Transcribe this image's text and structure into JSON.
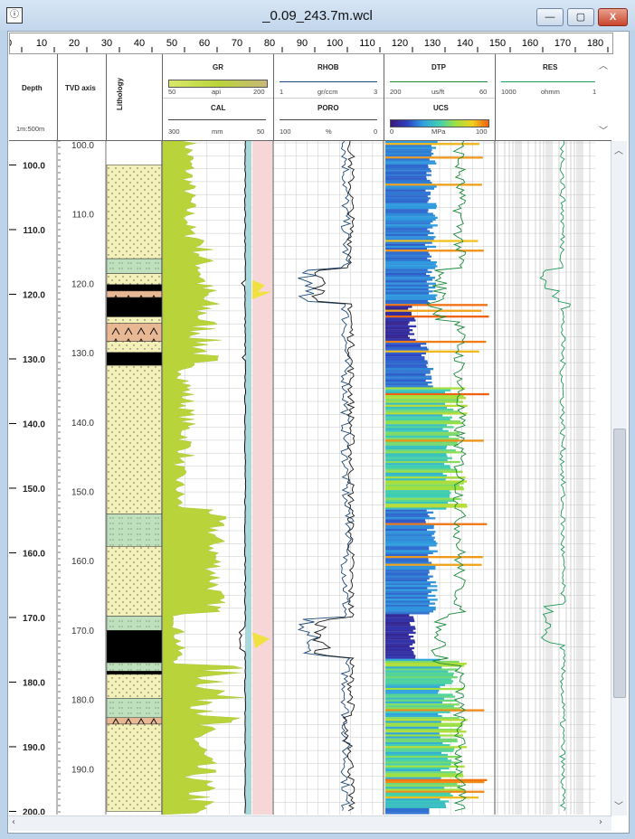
{
  "window": {
    "title": "_0.09_243.7m.wcl",
    "icon": "ⓘ",
    "minimize": "—",
    "maximize": "▢",
    "close": "X"
  },
  "ruler": {
    "ticks": [
      "0",
      "10",
      "20",
      "30",
      "40",
      "50",
      "60",
      "70",
      "80",
      "90",
      "100",
      "110",
      "120",
      "130",
      "140",
      "150",
      "160",
      "170",
      "180"
    ]
  },
  "header": {
    "depth": {
      "title": "Depth",
      "scale": "1m:500m"
    },
    "tvd": {
      "title": "TVD axis"
    },
    "lithology": {
      "title": "Lithology"
    },
    "gr": {
      "title": "GR",
      "min": "50",
      "unit": "api",
      "max": "200",
      "color": "#b8cf3a"
    },
    "cal": {
      "title": "CAL",
      "min": "300",
      "unit": "mm",
      "max": "50"
    },
    "rhob": {
      "title": "RHOB",
      "min": "1",
      "unit": "gr/ccm",
      "max": "3"
    },
    "poro": {
      "title": "PORO",
      "min": "100",
      "unit": "%",
      "max": "0"
    },
    "dtp": {
      "title": "DTP",
      "min": "200",
      "unit": "us/ft",
      "max": "60"
    },
    "ucs": {
      "title": "UCS",
      "min": "0",
      "unit": "MPa",
      "max": "100"
    },
    "res": {
      "title": "RES",
      "min": "1000",
      "unit": "ohmm",
      "max": "1"
    }
  },
  "depth_labels": [
    "100.0",
    "110.0",
    "120.0",
    "130.0",
    "140.0",
    "150.0",
    "160.0",
    "170.0",
    "180.0",
    "190.0",
    "200.0"
  ],
  "tvd_labels": [
    "100.0",
    "110.0",
    "120.0",
    "130.0",
    "140.0",
    "150.0",
    "160.0",
    "170.0",
    "180.0",
    "190.0"
  ],
  "lithology_beds": [
    {
      "from": 100,
      "to": 114.5,
      "type": "sand"
    },
    {
      "from": 114.5,
      "to": 116.8,
      "type": "shale"
    },
    {
      "from": 116.8,
      "to": 118.5,
      "type": "sand"
    },
    {
      "from": 118.5,
      "to": 119.5,
      "type": "coal"
    },
    {
      "from": 119.5,
      "to": 120.5,
      "type": "marl"
    },
    {
      "from": 120.5,
      "to": 123.5,
      "type": "coal"
    },
    {
      "from": 123.5,
      "to": 124.5,
      "type": "sand"
    },
    {
      "from": 124.5,
      "to": 127.3,
      "type": "marl"
    },
    {
      "from": 127.3,
      "to": 129.0,
      "type": "sand"
    },
    {
      "from": 129.0,
      "to": 131.0,
      "type": "coal"
    },
    {
      "from": 131.0,
      "to": 154.0,
      "type": "sand"
    },
    {
      "from": 154.0,
      "to": 159.0,
      "type": "shale"
    },
    {
      "from": 159.0,
      "to": 169.8,
      "type": "sand"
    },
    {
      "from": 169.8,
      "to": 172.0,
      "type": "shale"
    },
    {
      "from": 172.0,
      "to": 177.0,
      "type": "coal"
    },
    {
      "from": 177.0,
      "to": 178.3,
      "type": "shale"
    },
    {
      "from": 178.3,
      "to": 178.8,
      "type": "coal"
    },
    {
      "from": 178.8,
      "to": 182.5,
      "type": "sand"
    },
    {
      "from": 182.5,
      "to": 185.5,
      "type": "shale"
    },
    {
      "from": 185.5,
      "to": 186.5,
      "type": "marl"
    },
    {
      "from": 186.5,
      "to": 200,
      "type": "sand"
    }
  ],
  "colors": {
    "sand": "#f3f0b8",
    "shale": "#bfe0bd",
    "coal": "#000000",
    "marl": "#e8b894",
    "gr_fill": "#b9d43b",
    "cal_band": "#a9d8dc",
    "poro_band": "#f7d6d8",
    "rhob": "#1d4a7a",
    "poro": "#1a1a1a",
    "dtp": "#1a8a3a",
    "res": "#1f9a5a",
    "grid": "#c8c8c8"
  }
}
